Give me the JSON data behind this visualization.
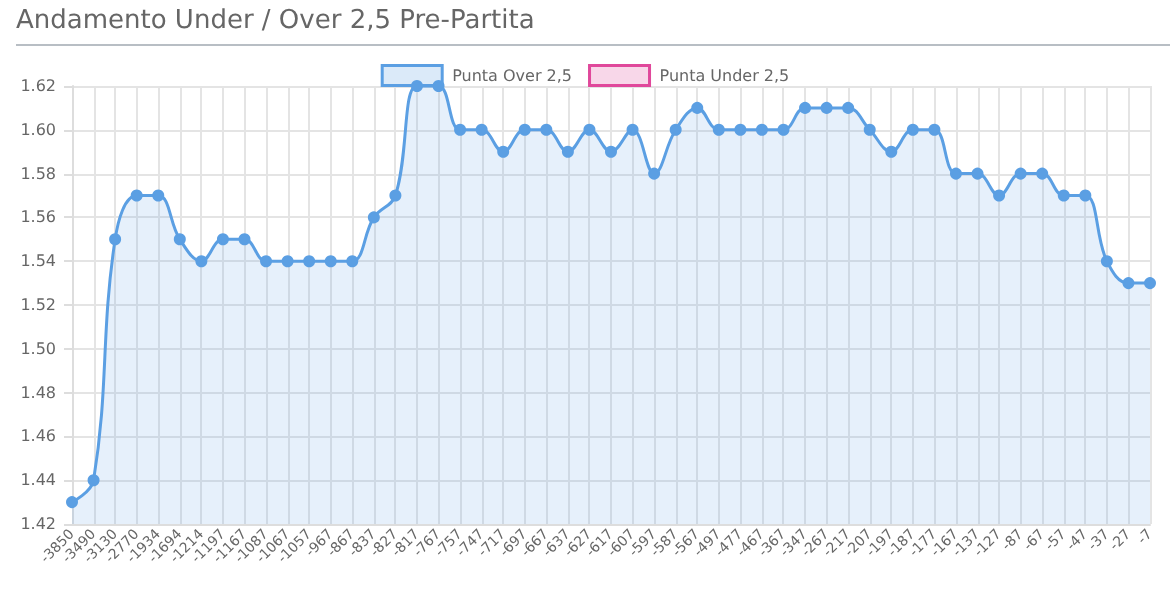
{
  "chart_data": {
    "type": "area",
    "title": "Andamento Under / Over 2,5 Pre-Partita",
    "categories": [
      "-3850",
      "-3490",
      "-3130",
      "-2770",
      "-1934",
      "-1694",
      "-1214",
      "-1197",
      "-1167",
      "-1087",
      "-1067",
      "-1057",
      "-967",
      "-867",
      "-837",
      "-827",
      "-817",
      "-767",
      "-757",
      "-747",
      "-717",
      "-697",
      "-667",
      "-637",
      "-627",
      "-617",
      "-607",
      "-597",
      "-587",
      "-567",
      "-497",
      "-477",
      "-467",
      "-367",
      "-347",
      "-267",
      "-217",
      "-207",
      "-197",
      "-187",
      "-177",
      "-167",
      "-137",
      "-127",
      "-87",
      "-67",
      "-57",
      "-47",
      "-37",
      "-27",
      "-7"
    ],
    "series": [
      {
        "name": "Punta Over 2,5",
        "color": "#5b9fe3",
        "values": [
          1.43,
          1.44,
          1.55,
          1.57,
          1.57,
          1.55,
          1.54,
          1.55,
          1.55,
          1.54,
          1.54,
          1.54,
          1.54,
          1.54,
          1.56,
          1.57,
          1.62,
          1.62,
          1.6,
          1.6,
          1.59,
          1.6,
          1.6,
          1.59,
          1.6,
          1.59,
          1.6,
          1.58,
          1.6,
          1.61,
          1.6,
          1.6,
          1.6,
          1.6,
          1.61,
          1.61,
          1.61,
          1.6,
          1.59,
          1.6,
          1.6,
          1.58,
          1.58,
          1.57,
          1.58,
          1.58,
          1.57,
          1.57,
          1.54,
          1.53,
          1.53
        ]
      },
      {
        "name": "Punta Under 2,5",
        "color": "#e0489b",
        "values": [
          null,
          null,
          null,
          null,
          null,
          null,
          null,
          null,
          null,
          null,
          null,
          null,
          null,
          null,
          null,
          null,
          null,
          null,
          null,
          null,
          null,
          null,
          null,
          null,
          null,
          null,
          null,
          null,
          null,
          null,
          null,
          null,
          null,
          null,
          null,
          null,
          null,
          null,
          null,
          null,
          null,
          null,
          null,
          null,
          null,
          null,
          null,
          null,
          null,
          null,
          null
        ]
      }
    ],
    "ylim": [
      1.42,
      1.62
    ],
    "yticks": [
      {
        "value": 1.42,
        "label": "1.42"
      },
      {
        "value": 1.44,
        "label": "1.44"
      },
      {
        "value": 1.46,
        "label": "1.46"
      },
      {
        "value": 1.48,
        "label": "1.48"
      },
      {
        "value": 1.5,
        "label": "1.50"
      },
      {
        "value": 1.52,
        "label": "1.52"
      },
      {
        "value": 1.54,
        "label": "1.54"
      },
      {
        "value": 1.56,
        "label": "1.56"
      },
      {
        "value": 1.58,
        "label": "1.58"
      },
      {
        "value": 1.6,
        "label": "1.60"
      },
      {
        "value": 1.62,
        "label": "1.62"
      }
    ],
    "grid": true,
    "legend": "top",
    "marker": "circle"
  }
}
